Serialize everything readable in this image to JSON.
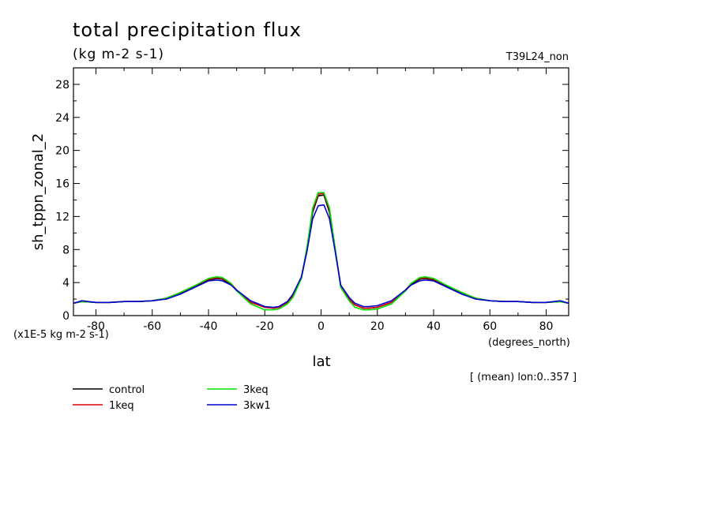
{
  "chart_data": {
    "type": "line",
    "title": "total precipitation flux",
    "subtitle": "(kg m-2 s-1)",
    "run_label": "T39L24_non",
    "xlabel": "lat",
    "x_units": "(degrees_north)",
    "ylabel": "sh_tppn_zonal_2",
    "y_scale_note": "(x1E-5 kg m-2 s-1)",
    "mean_note": "[ (mean) lon:0..357 ]",
    "xlim": [
      -88,
      88
    ],
    "ylim": [
      0,
      30
    ],
    "x_ticks": [
      -80,
      -60,
      -40,
      -20,
      0,
      20,
      40,
      60,
      80
    ],
    "x_tick_labels": [
      "-80",
      "-60",
      "-40",
      "-20",
      "0",
      "20",
      "40",
      "60",
      "80"
    ],
    "y_ticks": [
      0,
      4,
      8,
      12,
      16,
      20,
      24,
      28
    ],
    "y_tick_labels": [
      "0",
      "4",
      "8",
      "12",
      "16",
      "20",
      "24",
      "28"
    ],
    "x": [
      -88,
      -85,
      -80,
      -75,
      -70,
      -65,
      -60,
      -55,
      -50,
      -45,
      -40,
      -37,
      -35,
      -32,
      -30,
      -25,
      -20,
      -17,
      -15,
      -12,
      -10,
      -7,
      -5,
      -3,
      -1,
      1,
      3,
      5,
      7,
      10,
      12,
      15,
      17,
      20,
      25,
      30,
      32,
      35,
      37,
      40,
      45,
      50,
      55,
      60,
      65,
      70,
      75,
      80,
      85,
      88
    ],
    "series": [
      {
        "name": "control",
        "color": "#000000",
        "values": [
          1.5,
          1.7,
          1.6,
          1.6,
          1.7,
          1.7,
          1.8,
          2.1,
          2.7,
          3.5,
          4.3,
          4.5,
          4.4,
          3.8,
          3.0,
          1.6,
          1.0,
          0.9,
          1.0,
          1.6,
          2.4,
          4.5,
          8.0,
          12.5,
          14.5,
          14.6,
          12.5,
          8.0,
          3.5,
          2.0,
          1.3,
          0.9,
          0.9,
          1.0,
          1.6,
          3.0,
          3.8,
          4.4,
          4.5,
          4.3,
          3.5,
          2.7,
          2.1,
          1.8,
          1.7,
          1.7,
          1.6,
          1.6,
          1.7,
          1.5
        ]
      },
      {
        "name": "1keq",
        "color": "#e00000",
        "values": [
          1.5,
          1.7,
          1.6,
          1.6,
          1.7,
          1.7,
          1.8,
          2.1,
          2.8,
          3.6,
          4.4,
          4.6,
          4.5,
          3.9,
          3.1,
          1.6,
          1.0,
          0.9,
          1.0,
          1.6,
          2.4,
          4.6,
          8.2,
          12.8,
          14.7,
          14.8,
          12.8,
          8.1,
          3.6,
          2.0,
          1.3,
          0.9,
          0.9,
          1.0,
          1.6,
          3.1,
          3.9,
          4.5,
          4.6,
          4.4,
          3.6,
          2.8,
          2.1,
          1.8,
          1.7,
          1.7,
          1.6,
          1.6,
          1.7,
          1.5
        ]
      },
      {
        "name": "3keq",
        "color": "#00e000",
        "values": [
          1.5,
          1.7,
          1.6,
          1.6,
          1.7,
          1.7,
          1.8,
          2.1,
          2.8,
          3.6,
          4.5,
          4.7,
          4.6,
          3.9,
          3.0,
          1.4,
          0.7,
          0.7,
          0.8,
          1.4,
          2.2,
          4.5,
          8.3,
          13.0,
          14.9,
          14.9,
          13.0,
          8.2,
          3.4,
          1.8,
          1.0,
          0.7,
          0.7,
          0.8,
          1.4,
          3.0,
          3.9,
          4.6,
          4.7,
          4.5,
          3.6,
          2.8,
          2.1,
          1.8,
          1.7,
          1.7,
          1.6,
          1.6,
          1.7,
          1.5
        ]
      },
      {
        "name": "3kw1",
        "color": "#0000d0",
        "values": [
          1.5,
          1.8,
          1.6,
          1.6,
          1.7,
          1.7,
          1.8,
          2.0,
          2.6,
          3.4,
          4.2,
          4.3,
          4.2,
          3.7,
          3.1,
          1.8,
          1.1,
          1.0,
          1.1,
          1.7,
          2.6,
          4.7,
          7.8,
          11.7,
          13.3,
          13.4,
          11.7,
          7.8,
          3.7,
          2.2,
          1.5,
          1.1,
          1.1,
          1.2,
          1.8,
          3.1,
          3.7,
          4.2,
          4.3,
          4.2,
          3.4,
          2.6,
          2.0,
          1.8,
          1.7,
          1.7,
          1.6,
          1.6,
          1.8,
          1.5
        ]
      }
    ],
    "legend_position": "bottom-left",
    "grid": false
  }
}
